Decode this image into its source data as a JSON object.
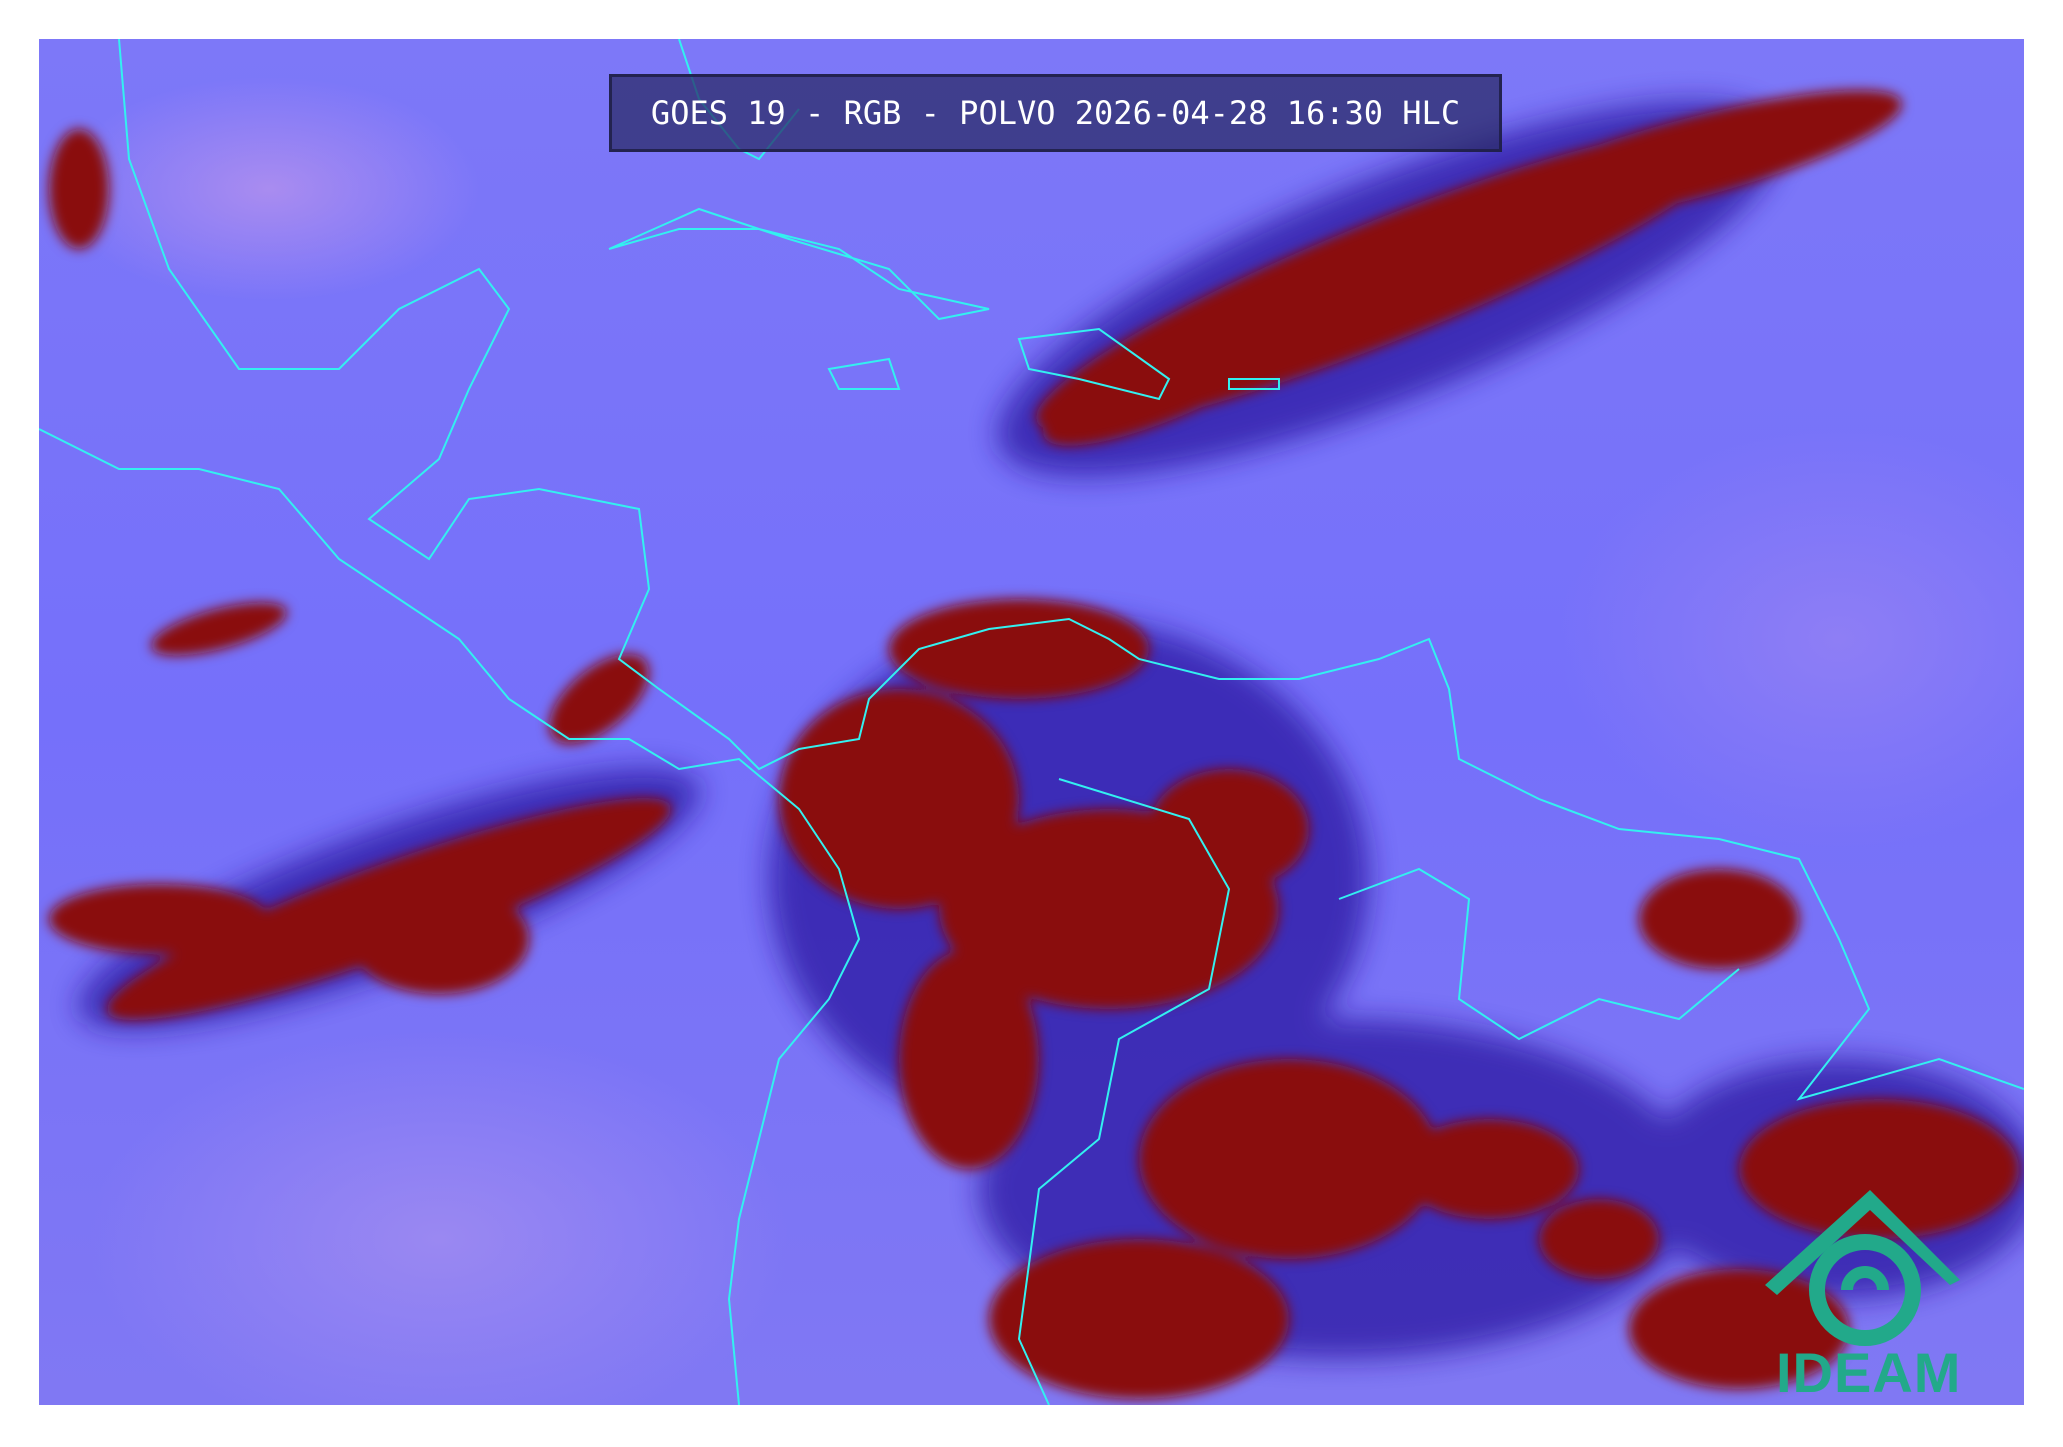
{
  "title": "GOES 19 - RGB - POLVO 2026-04-28 16:30 HLC",
  "logo": {
    "text": "IDEAM",
    "color": "#22a98a"
  },
  "colors": {
    "background": "#7a75f8",
    "clouds": "#8a0a0a",
    "coastlines": "#33f0f0"
  }
}
